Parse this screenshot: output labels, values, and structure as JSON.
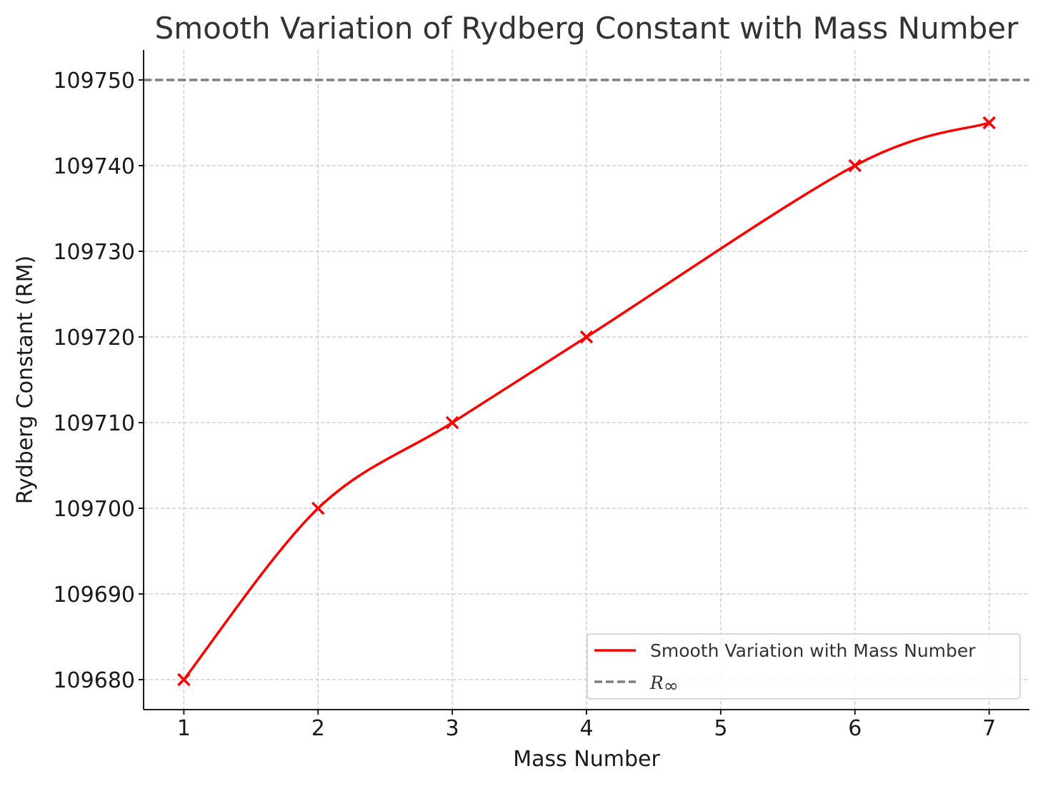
{
  "chart_data": {
    "type": "line",
    "title": "Smooth Variation of Rydberg Constant with Mass Number",
    "xlabel": "Mass Number",
    "ylabel": "Rydberg Constant (RM)",
    "xlim": [
      0.7,
      7.3
    ],
    "ylim": [
      109676.5,
      109753.5
    ],
    "x_ticks": [
      1,
      2,
      3,
      4,
      5,
      6,
      7
    ],
    "y_ticks": [
      109680,
      109690,
      109700,
      109710,
      109720,
      109730,
      109740,
      109750
    ],
    "grid": true,
    "legend_placement": "lower-right",
    "series": [
      {
        "name": "Smooth Variation with Mass Number",
        "color": "#ff0000",
        "style": "solid",
        "marker": "x",
        "x": [
          1,
          2,
          3,
          4,
          6,
          7
        ],
        "values": [
          109680,
          109700,
          109710,
          109720,
          109740,
          109745
        ]
      }
    ],
    "reference_lines": [
      {
        "name": "R",
        "name_subscript": "∞",
        "color": "#808080",
        "style": "dashed",
        "y": 109750
      }
    ]
  }
}
